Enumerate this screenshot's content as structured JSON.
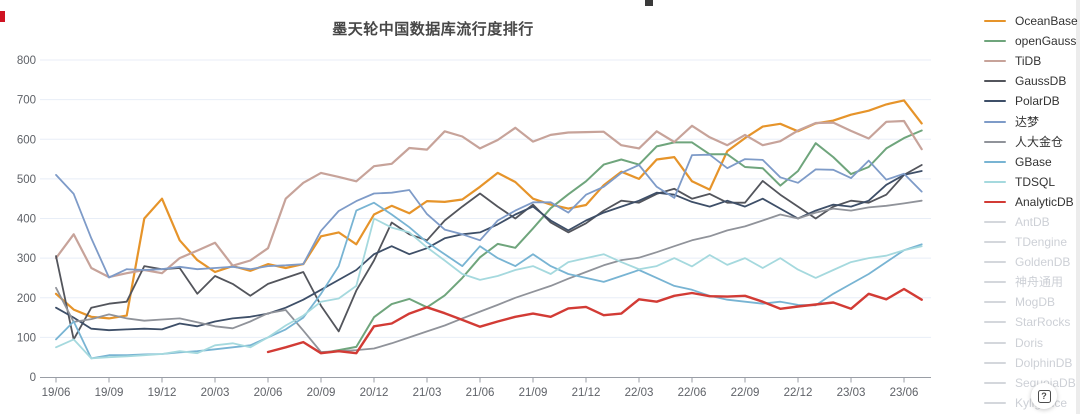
{
  "page": {
    "title": "墨天轮中国数据库流行度排行",
    "help_button_glyph": "?"
  },
  "legend": {
    "position": "right",
    "disabled_swatch_color": "#D4D7DC",
    "disabled_text_color": "#CDD0D6",
    "enabled_text_color": "#333333",
    "items": [
      {
        "label": "OceanBase",
        "color": "#E6942A",
        "enabled": true
      },
      {
        "label": "openGauss",
        "color": "#6FA57C",
        "enabled": true
      },
      {
        "label": "TiDB",
        "color": "#C7A39A",
        "enabled": true
      },
      {
        "label": "GaussDB",
        "color": "#53555C",
        "enabled": true
      },
      {
        "label": "PolarDB",
        "color": "#3E4F68",
        "enabled": true
      },
      {
        "label": "达梦",
        "color": "#7E9BC8",
        "enabled": true
      },
      {
        "label": "人大金仓",
        "color": "#90939A",
        "enabled": true
      },
      {
        "label": "GBase",
        "color": "#78B4D3",
        "enabled": true
      },
      {
        "label": "TDSQL",
        "color": "#A5D9DE",
        "enabled": true
      },
      {
        "label": "AnalyticDB",
        "color": "#D23B35",
        "enabled": true
      },
      {
        "label": "AntDB",
        "color": "#D4D7DC",
        "enabled": false
      },
      {
        "label": "TDengine",
        "color": "#D4D7DC",
        "enabled": false
      },
      {
        "label": "GoldenDB",
        "color": "#D4D7DC",
        "enabled": false
      },
      {
        "label": "神舟通用",
        "color": "#D4D7DC",
        "enabled": false
      },
      {
        "label": "MogDB",
        "color": "#D4D7DC",
        "enabled": false
      },
      {
        "label": "StarRocks",
        "color": "#D4D7DC",
        "enabled": false
      },
      {
        "label": "Doris",
        "color": "#D4D7DC",
        "enabled": false
      },
      {
        "label": "DolphinDB",
        "color": "#D4D7DC",
        "enabled": false
      },
      {
        "label": "SequoiaDB",
        "color": "#D4D7DC",
        "enabled": false
      },
      {
        "label": "Kyligence",
        "color": "#D4D7DC",
        "enabled": false
      }
    ]
  },
  "chart_data": {
    "type": "line",
    "title": "墨天轮中国数据库流行度排行",
    "xlabel": "",
    "ylabel": "",
    "ylim": [
      0,
      800
    ],
    "grid": true,
    "legend_position": "right",
    "y_tick_labels": [
      "0",
      "100",
      "200",
      "300",
      "400",
      "500",
      "600",
      "700",
      "800"
    ],
    "x_tick_labels": [
      "19/06",
      "19/09",
      "19/12",
      "20/03",
      "20/06",
      "20/09",
      "20/12",
      "21/03",
      "21/06",
      "21/09",
      "21/12",
      "22/03",
      "22/06",
      "22/09",
      "22/12",
      "23/03",
      "23/06"
    ],
    "x": [
      "19/06",
      "19/07",
      "19/08",
      "19/09",
      "19/10",
      "19/11",
      "19/12",
      "20/01",
      "20/02",
      "20/03",
      "20/04",
      "20/05",
      "20/06",
      "20/07",
      "20/08",
      "20/09",
      "20/10",
      "20/11",
      "20/12",
      "21/01",
      "21/02",
      "21/03",
      "21/04",
      "21/05",
      "21/06",
      "21/07",
      "21/08",
      "21/09",
      "21/10",
      "21/11",
      "21/12",
      "22/01",
      "22/02",
      "22/03",
      "22/04",
      "22/05",
      "22/06",
      "22/07",
      "22/08",
      "22/09",
      "22/10",
      "22/11",
      "22/12",
      "23/01",
      "23/02",
      "23/03",
      "23/04",
      "23/05",
      "23/06",
      "23/07"
    ],
    "series": [
      {
        "name": "OceanBase",
        "color": "#E6942A",
        "width": 2.2,
        "values": [
          210,
          170,
          152,
          148,
          155,
          400,
          450,
          345,
          295,
          265,
          280,
          268,
          285,
          275,
          285,
          355,
          365,
          335,
          410,
          432,
          413,
          444,
          442,
          448,
          480,
          515,
          492,
          450,
          435,
          425,
          434,
          484,
          518,
          500,
          549,
          555,
          494,
          473,
          570,
          603,
          632,
          639,
          620,
          640,
          647,
          662,
          672,
          688,
          698,
          640
        ]
      },
      {
        "name": "openGauss",
        "color": "#6FA57C",
        "width": 2,
        "values": [
          null,
          null,
          null,
          null,
          null,
          null,
          null,
          null,
          null,
          null,
          null,
          null,
          null,
          null,
          null,
          60,
          68,
          76,
          151,
          184,
          197,
          176,
          206,
          250,
          302,
          336,
          326,
          375,
          426,
          461,
          494,
          536,
          549,
          536,
          582,
          592,
          592,
          562,
          562,
          530,
          527,
          483,
          520,
          590,
          555,
          512,
          530,
          577,
          603,
          622
        ]
      },
      {
        "name": "TiDB",
        "color": "#C7A39A",
        "width": 2.2,
        "values": [
          300,
          360,
          275,
          252,
          262,
          270,
          262,
          300,
          319,
          339,
          281,
          294,
          325,
          450,
          490,
          515,
          505,
          494,
          532,
          538,
          578,
          574,
          620,
          607,
          577,
          598,
          629,
          594,
          611,
          617,
          618,
          619,
          585,
          577,
          620,
          593,
          634,
          605,
          585,
          611,
          585,
          595,
          622,
          641,
          642,
          621,
          602,
          644,
          646,
          575
        ]
      },
      {
        "name": "GaussDB",
        "color": "#53555C",
        "width": 1.8,
        "values": [
          305,
          95,
          175,
          185,
          190,
          280,
          272,
          275,
          210,
          255,
          235,
          205,
          235,
          250,
          265,
          180,
          115,
          218,
          294,
          390,
          360,
          345,
          395,
          430,
          463,
          430,
          400,
          435,
          390,
          365,
          388,
          420,
          445,
          440,
          462,
          475,
          450,
          462,
          440,
          440,
          495,
          460,
          430,
          400,
          430,
          445,
          440,
          460,
          510,
          535
        ]
      },
      {
        "name": "PolarDB",
        "color": "#3E4F68",
        "width": 1.8,
        "values": [
          175,
          150,
          122,
          118,
          120,
          122,
          120,
          135,
          128,
          140,
          148,
          152,
          160,
          175,
          195,
          220,
          245,
          270,
          310,
          330,
          310,
          325,
          350,
          360,
          365,
          385,
          410,
          430,
          395,
          370,
          395,
          415,
          430,
          445,
          465,
          460,
          442,
          430,
          445,
          430,
          450,
          425,
          400,
          420,
          435,
          430,
          445,
          485,
          510,
          520
        ]
      },
      {
        "name": "达梦",
        "color": "#7E9BC8",
        "width": 1.8,
        "values": [
          510,
          462,
          350,
          251,
          272,
          270,
          272,
          278,
          272,
          275,
          278,
          272,
          280,
          282,
          285,
          369,
          419,
          444,
          463,
          465,
          472,
          411,
          372,
          360,
          345,
          395,
          420,
          441,
          441,
          415,
          460,
          480,
          515,
          535,
          480,
          452,
          560,
          561,
          527,
          550,
          548,
          504,
          490,
          524,
          523,
          502,
          546,
          498,
          513,
          468
        ]
      },
      {
        "name": "人大金仓",
        "color": "#90939A",
        "width": 1.8,
        "values": [
          225,
          139,
          146,
          158,
          148,
          142,
          145,
          148,
          138,
          128,
          123,
          140,
          161,
          169,
          117,
          63,
          65,
          68,
          72,
          85,
          100,
          115,
          130,
          148,
          165,
          182,
          200,
          215,
          230,
          248,
          265,
          282,
          295,
          301,
          315,
          330,
          345,
          355,
          370,
          380,
          395,
          410,
          400,
          415,
          425,
          420,
          428,
          432,
          438,
          445
        ]
      },
      {
        "name": "GBase",
        "color": "#78B4D3",
        "width": 1.8,
        "values": [
          95,
          140,
          47,
          55,
          55,
          57,
          58,
          62,
          65,
          70,
          75,
          80,
          100,
          120,
          150,
          210,
          280,
          420,
          440,
          410,
          378,
          340,
          310,
          280,
          330,
          300,
          280,
          310,
          280,
          260,
          250,
          240,
          255,
          270,
          250,
          230,
          220,
          205,
          195,
          190,
          185,
          190,
          182,
          181,
          210,
          235,
          260,
          290,
          320,
          335
        ]
      },
      {
        "name": "TDSQL",
        "color": "#A5D9DE",
        "width": 1.8,
        "values": [
          75,
          95,
          47,
          50,
          52,
          55,
          58,
          65,
          60,
          80,
          85,
          75,
          100,
          130,
          155,
          190,
          198,
          230,
          400,
          377,
          365,
          327,
          294,
          260,
          245,
          255,
          270,
          280,
          260,
          290,
          300,
          310,
          290,
          272,
          280,
          300,
          279,
          308,
          283,
          300,
          275,
          300,
          271,
          250,
          270,
          290,
          300,
          306,
          320,
          330
        ]
      },
      {
        "name": "AnalyticDB",
        "color": "#D23B35",
        "width": 2.4,
        "values": [
          null,
          null,
          null,
          null,
          null,
          null,
          null,
          null,
          null,
          null,
          null,
          null,
          63,
          75,
          88,
          60,
          65,
          60,
          128,
          135,
          160,
          176,
          161,
          144,
          127,
          140,
          152,
          160,
          152,
          173,
          177,
          156,
          160,
          196,
          190,
          205,
          212,
          204,
          203,
          205,
          190,
          172,
          178,
          183,
          188,
          172,
          210,
          196,
          222,
          195
        ]
      }
    ],
    "axis": {
      "grid_color": "#E8EEF7",
      "axis_line_color": "#9A9EA6",
      "label_color": "#5F6268"
    }
  }
}
